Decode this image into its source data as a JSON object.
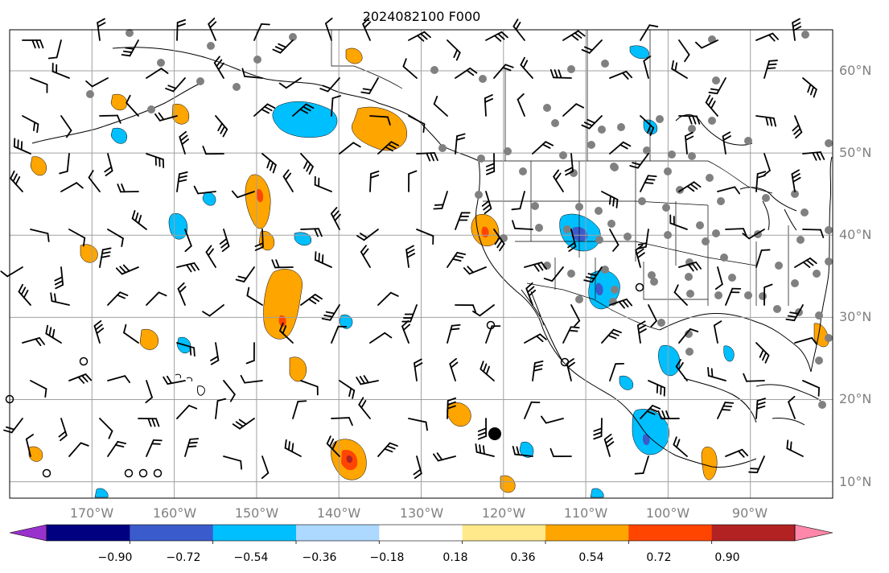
{
  "title": "2024082100 F000",
  "map": {
    "lon_range": [
      -180,
      -80
    ],
    "lat_range": [
      8,
      65
    ],
    "grid": true,
    "lat_labels": [
      "60°N",
      "50°N",
      "40°N",
      "30°N",
      "20°N",
      "10°N"
    ],
    "lon_labels": [
      "170°W",
      "160°W",
      "150°W",
      "140°W",
      "130°W",
      "120°W",
      "110°W",
      "100°W",
      "90°W"
    ]
  },
  "colorbar": {
    "orientation": "horizontal",
    "extend": "both",
    "ticks": [
      "−0.90",
      "−0.72",
      "−0.54",
      "−0.36",
      "−0.18",
      "0.18",
      "0.36",
      "0.54",
      "0.72",
      "0.90"
    ],
    "colors": [
      "#9932cc",
      "#000080",
      "#3a5bcc",
      "#00bfff",
      "#add8ff",
      "#ffffff",
      "#ffe98a",
      "#ffa500",
      "#ff4500",
      "#b22222",
      "#ff88aa"
    ]
  },
  "colors": {
    "land_outline": "#000000",
    "grid": "#a0a0a0",
    "station_dot": "#808080",
    "wind_barb": "#000000"
  },
  "icons": {
    "wind_barb": "wind-barb-icon",
    "station": "station-dot-icon",
    "calm": "calm-circle-icon"
  }
}
